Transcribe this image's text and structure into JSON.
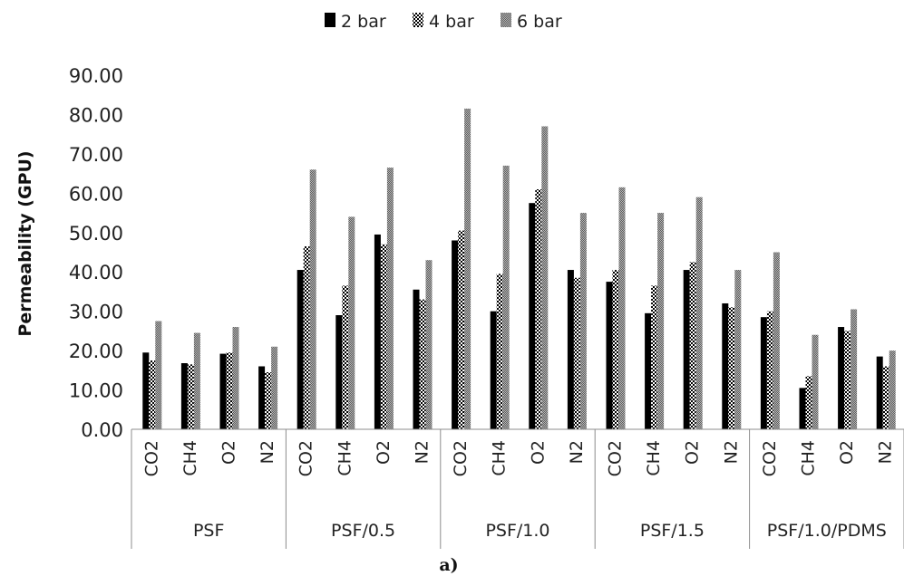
{
  "chart_data": {
    "type": "bar",
    "ylabel": "Permeability (GPU)",
    "ylim": [
      0,
      90
    ],
    "yticks": [
      "0.00",
      "10.00",
      "20.00",
      "30.00",
      "40.00",
      "50.00",
      "60.00",
      "70.00",
      "80.00",
      "90.00"
    ],
    "grid": false,
    "legend_position": "top-center",
    "caption": "a)",
    "groups": [
      {
        "label": "PSF",
        "categories": [
          "CO2",
          "CH4",
          "O2",
          "N2"
        ]
      },
      {
        "label": "PSF/0.5",
        "categories": [
          "CO2",
          "CH4",
          "O2",
          "N2"
        ]
      },
      {
        "label": "PSF/1.0",
        "categories": [
          "CO2",
          "CH4",
          "O2",
          "N2"
        ]
      },
      {
        "label": "PSF/1.5",
        "categories": [
          "CO2",
          "CH4",
          "O2",
          "N2"
        ]
      },
      {
        "label": "PSF/1.0/PDMS",
        "categories": [
          "CO2",
          "CH4",
          "O2",
          "N2"
        ]
      }
    ],
    "series": [
      {
        "name": "2 bar",
        "color": "#000000",
        "pattern": "solid",
        "values": [
          19.5,
          16.8,
          19.2,
          16.0,
          40.5,
          29.0,
          49.5,
          35.5,
          48.0,
          30.0,
          57.5,
          40.5,
          37.5,
          29.5,
          40.5,
          32.0,
          28.5,
          10.5,
          26.0,
          18.5
        ]
      },
      {
        "name": "4 bar",
        "color": "#000000",
        "pattern": "checker",
        "values": [
          17.5,
          16.5,
          19.5,
          14.5,
          46.5,
          36.5,
          47.0,
          33.0,
          50.5,
          39.5,
          61.0,
          38.5,
          40.5,
          36.5,
          42.5,
          31.0,
          30.0,
          13.5,
          25.0,
          16.0
        ]
      },
      {
        "name": "6 bar",
        "color": "#8a8a8a",
        "pattern": "dotted-gray",
        "values": [
          27.5,
          24.5,
          26.0,
          21.0,
          66.0,
          54.0,
          66.5,
          43.0,
          81.5,
          67.0,
          77.0,
          55.0,
          61.5,
          55.0,
          59.0,
          40.5,
          45.0,
          24.0,
          30.5,
          20.0
        ]
      }
    ]
  }
}
